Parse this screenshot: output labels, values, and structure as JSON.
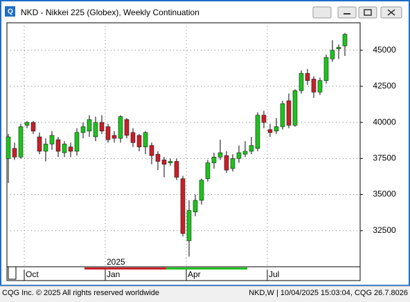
{
  "window_title": "NKD - Nikkei 225 (Globex), Weekly Continuation",
  "chart_data": {
    "type": "candlestick",
    "open": [
      37500,
      38200,
      37600,
      39800,
      40000,
      39000,
      38000,
      38500,
      38800,
      37900,
      38300,
      38000,
      39300,
      39400,
      39000,
      40000,
      39700,
      39100,
      38900,
      40200,
      39300,
      39100,
      38300,
      38400,
      37800,
      37400,
      37200,
      37300,
      36100,
      31800,
      33800,
      34600,
      36100,
      37200,
      37600,
      37700,
      36800,
      37500,
      37800,
      38000,
      38200,
      40500,
      39500,
      39400,
      39700,
      41500,
      39800,
      42200,
      43400,
      43000,
      42100,
      42900,
      44400,
      45100,
      45300
    ],
    "high": [
      39200,
      38600,
      39900,
      40100,
      40100,
      39300,
      38900,
      39400,
      39000,
      38700,
      38600,
      39600,
      40000,
      40500,
      40400,
      40500,
      39900,
      39400,
      40500,
      40300,
      39600,
      39200,
      39400,
      38600,
      38000,
      37600,
      37500,
      37500,
      36300,
      34600,
      35000,
      36100,
      37400,
      37900,
      38800,
      38000,
      37800,
      38400,
      38700,
      39000,
      40700,
      40800,
      39900,
      40300,
      41500,
      42000,
      42300,
      43600,
      43700,
      43200,
      43100,
      44700,
      45700,
      45400,
      46200
    ],
    "low": [
      35800,
      37400,
      37500,
      39600,
      39200,
      37800,
      37300,
      38100,
      37600,
      37600,
      37600,
      37700,
      38900,
      39000,
      38700,
      39200,
      38600,
      38600,
      38600,
      38900,
      38300,
      38000,
      37800,
      37100,
      36700,
      36200,
      37000,
      36000,
      32100,
      30700,
      33500,
      34300,
      35900,
      36800,
      37400,
      36500,
      36600,
      37200,
      37600,
      37800,
      38000,
      39600,
      39000,
      39200,
      39500,
      39600,
      39700,
      42000,
      42600,
      41700,
      41900,
      42700,
      44200,
      44400,
      44600
    ],
    "close": [
      39000,
      37600,
      39700,
      40000,
      39400,
      38000,
      38500,
      39100,
      38000,
      38500,
      38000,
      39300,
      39700,
      40200,
      40000,
      39400,
      38800,
      38900,
      40400,
      39100,
      38600,
      38300,
      39300,
      37700,
      37300,
      37100,
      37300,
      36200,
      32300,
      33900,
      34600,
      36000,
      37200,
      37600,
      37900,
      36700,
      37500,
      37900,
      38000,
      38400,
      40500,
      40000,
      39300,
      39700,
      41300,
      39800,
      42200,
      43400,
      42900,
      42100,
      42900,
      44500,
      45000,
      45200,
      46100
    ],
    "up_color": "#1fc21f",
    "down_color": "#c8202a",
    "ylim": [
      30000,
      46900
    ],
    "yticks": [
      32500,
      35000,
      37500,
      40000,
      42500,
      45000
    ],
    "xticks": [
      {
        "value": 3,
        "label": "Oct"
      },
      {
        "value": 16,
        "label": "Jan"
      },
      {
        "value": 29,
        "label": "Apr"
      },
      {
        "value": 42,
        "label": "Jul"
      }
    ],
    "year_label": "2025",
    "grid": true
  },
  "status": {
    "left": "CQG Inc. © 2025 All rights reserved worldwide",
    "right": "NKD,W | 10/04/2025 15:03:04, CQG 26.7.8026"
  }
}
